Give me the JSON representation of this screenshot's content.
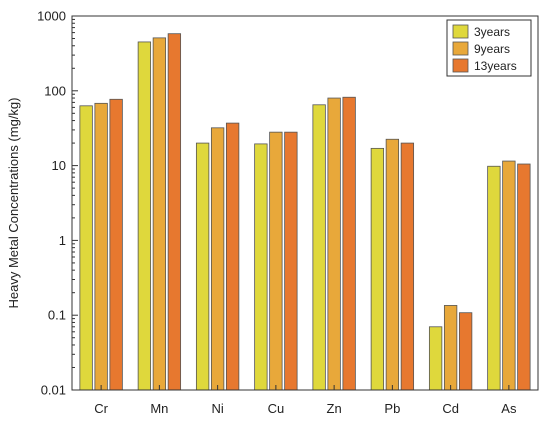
{
  "chart_data": {
    "type": "bar",
    "ylabel": "Heavy Metal Concentrations (mg/kg)",
    "xlabel": "",
    "yscale": "log",
    "ylim": [
      0.01,
      1000
    ],
    "yticks": [
      "0.01",
      "0.1",
      "1",
      "10",
      "100",
      "1000"
    ],
    "categories": [
      "Cr",
      "Mn",
      "Ni",
      "Cu",
      "Zn",
      "Pb",
      "Cd",
      "As"
    ],
    "series": [
      {
        "name": "3years",
        "color": "#dfd83c",
        "values": [
          63,
          450,
          20,
          19.5,
          65,
          17,
          0.07,
          9.8
        ]
      },
      {
        "name": "9years",
        "color": "#e8a83a",
        "values": [
          68,
          510,
          32,
          28,
          80,
          22.5,
          0.135,
          11.5
        ]
      },
      {
        "name": "13years",
        "color": "#e7782f",
        "values": [
          77,
          580,
          37,
          28,
          82,
          20,
          0.108,
          10.5
        ]
      }
    ],
    "legend_position": "top-right",
    "grid": false
  }
}
